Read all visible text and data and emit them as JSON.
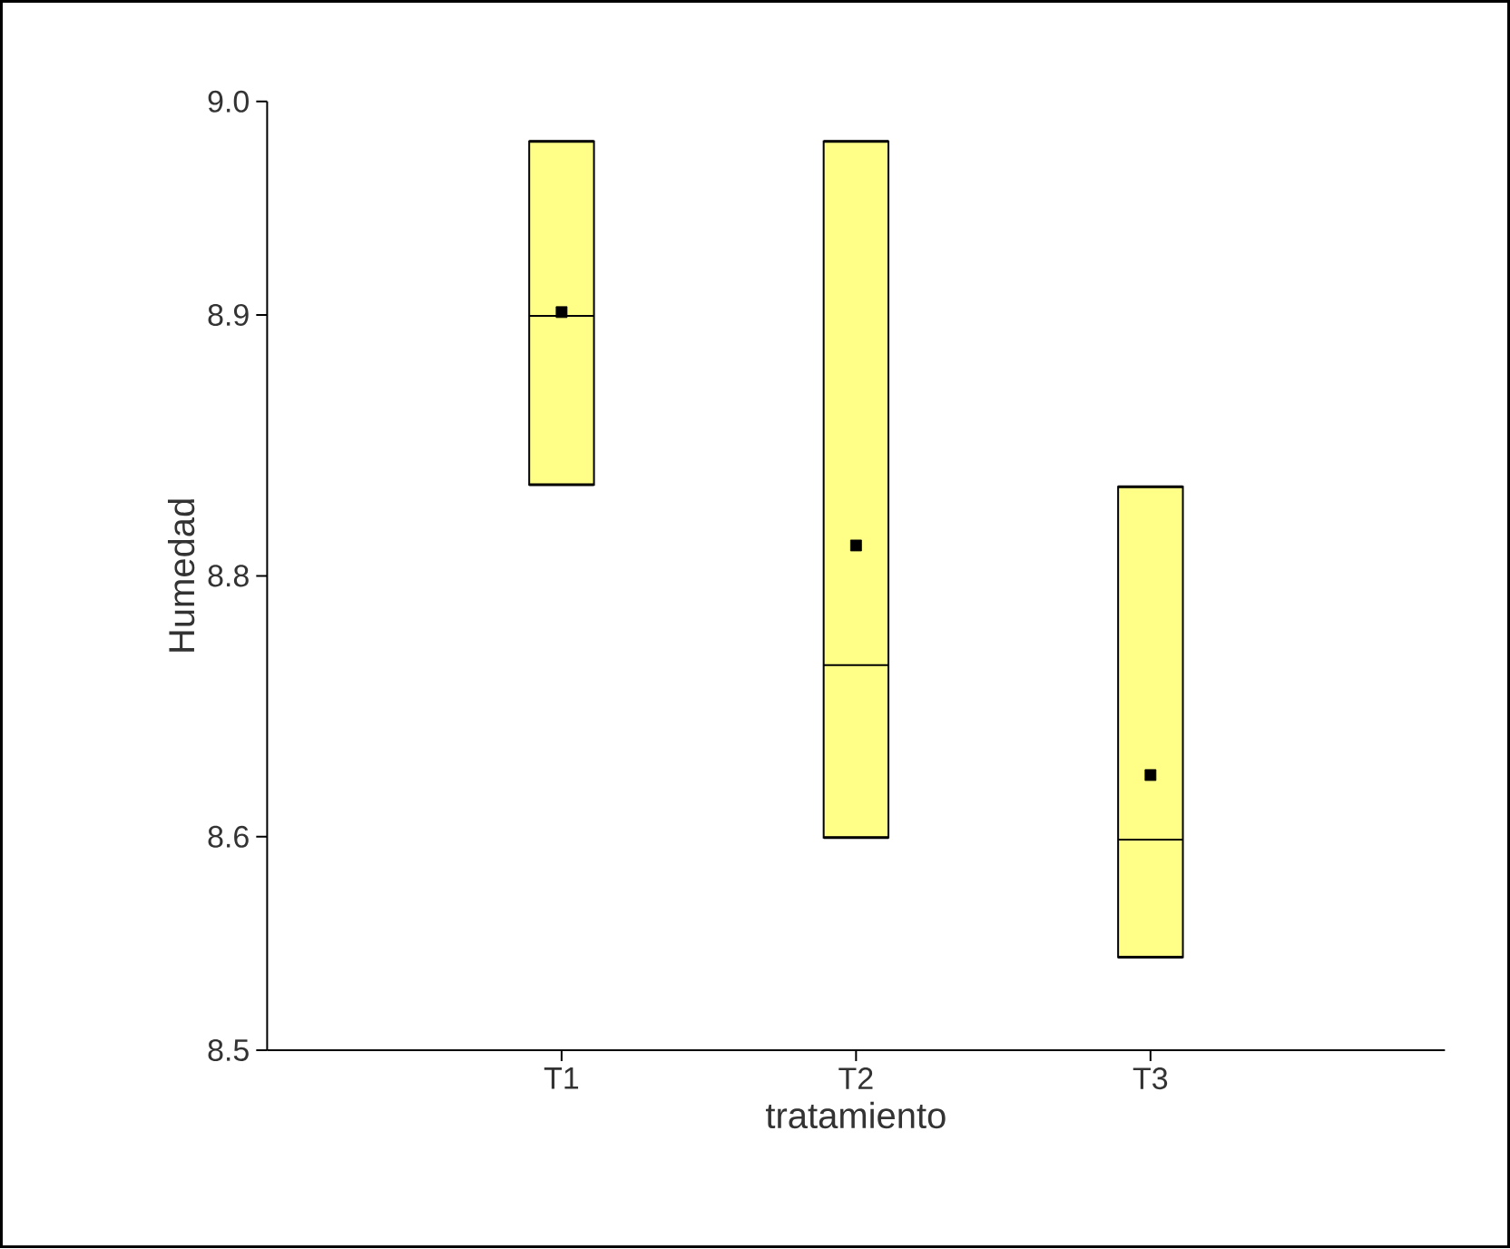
{
  "chart_data": {
    "type": "box",
    "xlabel": "tratamiento",
    "ylabel": "Humedad",
    "categories": [
      "T1",
      "T2",
      "T3"
    ],
    "ylim": [
      8.5,
      9.0
    ],
    "yticks": [
      8.5,
      {
        "value": 8.6125,
        "label": "8.6"
      },
      {
        "value": 8.75,
        "label": "8.8"
      },
      {
        "value": 8.8875,
        "label": "8.9"
      },
      {
        "value": 9.0,
        "label": "9.0"
      }
    ],
    "grid": false,
    "series": [
      {
        "color": "#ffff88",
        "boxes": [
          {
            "low": 8.798,
            "q1": 8.798,
            "median": 8.887,
            "q3": 8.979,
            "high": 8.979,
            "mean": 8.889
          },
          {
            "low": 8.612,
            "q1": 8.612,
            "median": 8.703,
            "q3": 8.979,
            "high": 8.979,
            "mean": 8.766
          },
          {
            "low": 8.549,
            "q1": 8.549,
            "median": 8.611,
            "q3": 8.797,
            "high": 8.797,
            "mean": 8.645
          }
        ]
      }
    ]
  }
}
